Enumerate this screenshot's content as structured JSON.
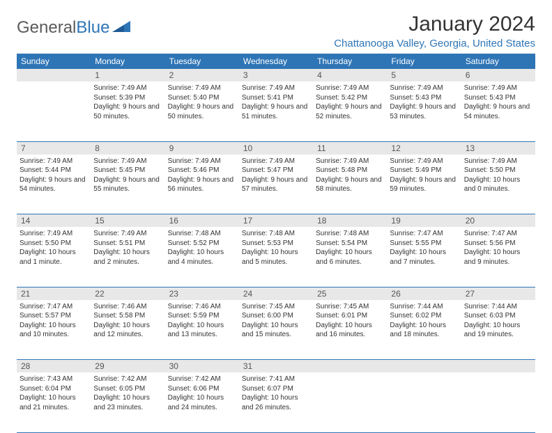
{
  "brand": {
    "name_gray": "General",
    "name_blue": "Blue"
  },
  "title": "January 2024",
  "location": "Chattanooga Valley, Georgia, United States",
  "colors": {
    "header_bg": "#2e75b6",
    "header_text": "#ffffff",
    "daynum_bg": "#e8e8e8",
    "daynum_text": "#555555",
    "border": "#2e75b6",
    "body_text": "#333333",
    "accent": "#2e75b6"
  },
  "fonts": {
    "body_size": 10,
    "header_size": 12,
    "title_size": 30,
    "location_size": 15
  },
  "day_headers": [
    "Sunday",
    "Monday",
    "Tuesday",
    "Wednesday",
    "Thursday",
    "Friday",
    "Saturday"
  ],
  "weeks": [
    {
      "nums": [
        "",
        "1",
        "2",
        "3",
        "4",
        "5",
        "6"
      ],
      "cells": [
        "",
        "Sunrise: 7:49 AM\nSunset: 5:39 PM\nDaylight: 9 hours and 50 minutes.",
        "Sunrise: 7:49 AM\nSunset: 5:40 PM\nDaylight: 9 hours and 50 minutes.",
        "Sunrise: 7:49 AM\nSunset: 5:41 PM\nDaylight: 9 hours and 51 minutes.",
        "Sunrise: 7:49 AM\nSunset: 5:42 PM\nDaylight: 9 hours and 52 minutes.",
        "Sunrise: 7:49 AM\nSunset: 5:43 PM\nDaylight: 9 hours and 53 minutes.",
        "Sunrise: 7:49 AM\nSunset: 5:43 PM\nDaylight: 9 hours and 54 minutes."
      ]
    },
    {
      "nums": [
        "7",
        "8",
        "9",
        "10",
        "11",
        "12",
        "13"
      ],
      "cells": [
        "Sunrise: 7:49 AM\nSunset: 5:44 PM\nDaylight: 9 hours and 54 minutes.",
        "Sunrise: 7:49 AM\nSunset: 5:45 PM\nDaylight: 9 hours and 55 minutes.",
        "Sunrise: 7:49 AM\nSunset: 5:46 PM\nDaylight: 9 hours and 56 minutes.",
        "Sunrise: 7:49 AM\nSunset: 5:47 PM\nDaylight: 9 hours and 57 minutes.",
        "Sunrise: 7:49 AM\nSunset: 5:48 PM\nDaylight: 9 hours and 58 minutes.",
        "Sunrise: 7:49 AM\nSunset: 5:49 PM\nDaylight: 9 hours and 59 minutes.",
        "Sunrise: 7:49 AM\nSunset: 5:50 PM\nDaylight: 10 hours and 0 minutes."
      ]
    },
    {
      "nums": [
        "14",
        "15",
        "16",
        "17",
        "18",
        "19",
        "20"
      ],
      "cells": [
        "Sunrise: 7:49 AM\nSunset: 5:50 PM\nDaylight: 10 hours and 1 minute.",
        "Sunrise: 7:49 AM\nSunset: 5:51 PM\nDaylight: 10 hours and 2 minutes.",
        "Sunrise: 7:48 AM\nSunset: 5:52 PM\nDaylight: 10 hours and 4 minutes.",
        "Sunrise: 7:48 AM\nSunset: 5:53 PM\nDaylight: 10 hours and 5 minutes.",
        "Sunrise: 7:48 AM\nSunset: 5:54 PM\nDaylight: 10 hours and 6 minutes.",
        "Sunrise: 7:47 AM\nSunset: 5:55 PM\nDaylight: 10 hours and 7 minutes.",
        "Sunrise: 7:47 AM\nSunset: 5:56 PM\nDaylight: 10 hours and 9 minutes."
      ]
    },
    {
      "nums": [
        "21",
        "22",
        "23",
        "24",
        "25",
        "26",
        "27"
      ],
      "cells": [
        "Sunrise: 7:47 AM\nSunset: 5:57 PM\nDaylight: 10 hours and 10 minutes.",
        "Sunrise: 7:46 AM\nSunset: 5:58 PM\nDaylight: 10 hours and 12 minutes.",
        "Sunrise: 7:46 AM\nSunset: 5:59 PM\nDaylight: 10 hours and 13 minutes.",
        "Sunrise: 7:45 AM\nSunset: 6:00 PM\nDaylight: 10 hours and 15 minutes.",
        "Sunrise: 7:45 AM\nSunset: 6:01 PM\nDaylight: 10 hours and 16 minutes.",
        "Sunrise: 7:44 AM\nSunset: 6:02 PM\nDaylight: 10 hours and 18 minutes.",
        "Sunrise: 7:44 AM\nSunset: 6:03 PM\nDaylight: 10 hours and 19 minutes."
      ]
    },
    {
      "nums": [
        "28",
        "29",
        "30",
        "31",
        "",
        "",
        ""
      ],
      "cells": [
        "Sunrise: 7:43 AM\nSunset: 6:04 PM\nDaylight: 10 hours and 21 minutes.",
        "Sunrise: 7:42 AM\nSunset: 6:05 PM\nDaylight: 10 hours and 23 minutes.",
        "Sunrise: 7:42 AM\nSunset: 6:06 PM\nDaylight: 10 hours and 24 minutes.",
        "Sunrise: 7:41 AM\nSunset: 6:07 PM\nDaylight: 10 hours and 26 minutes.",
        "",
        "",
        ""
      ]
    }
  ]
}
